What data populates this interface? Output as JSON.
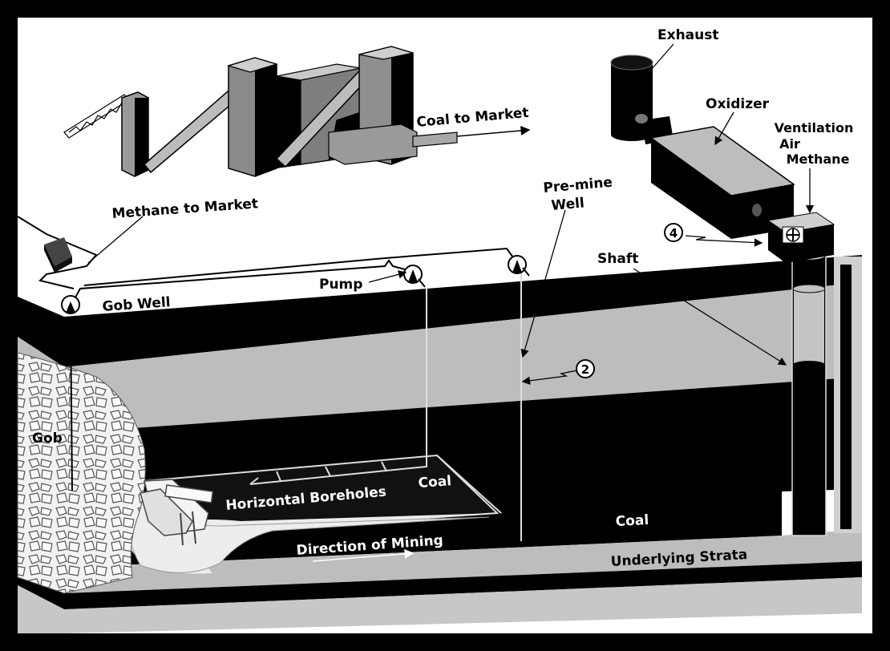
{
  "diagram": {
    "labels": {
      "exhaust": "Exhaust",
      "oxidizer": "Oxidizer",
      "coal_to_market": "Coal to Market",
      "ventilation_air": "Ventilation",
      "ventilation_air_2": "Air",
      "ventilation_air_3": "Methane",
      "methane_to_market": "Methane to Market",
      "pre_mine_well": "Pre-mine",
      "pre_mine_well_2": "Well",
      "marker_4": "4",
      "shaft": "Shaft",
      "pump": "Pump",
      "gob_well": "Gob Well",
      "marker_2": "2",
      "gob": "Gob",
      "horizontal_boreholes": "Horizontal Boreholes",
      "coal_upper": "Coal",
      "coal_lower": "Coal",
      "direction_of_mining": "Direction of Mining",
      "underlying_strata": "Underlying Strata"
    }
  }
}
